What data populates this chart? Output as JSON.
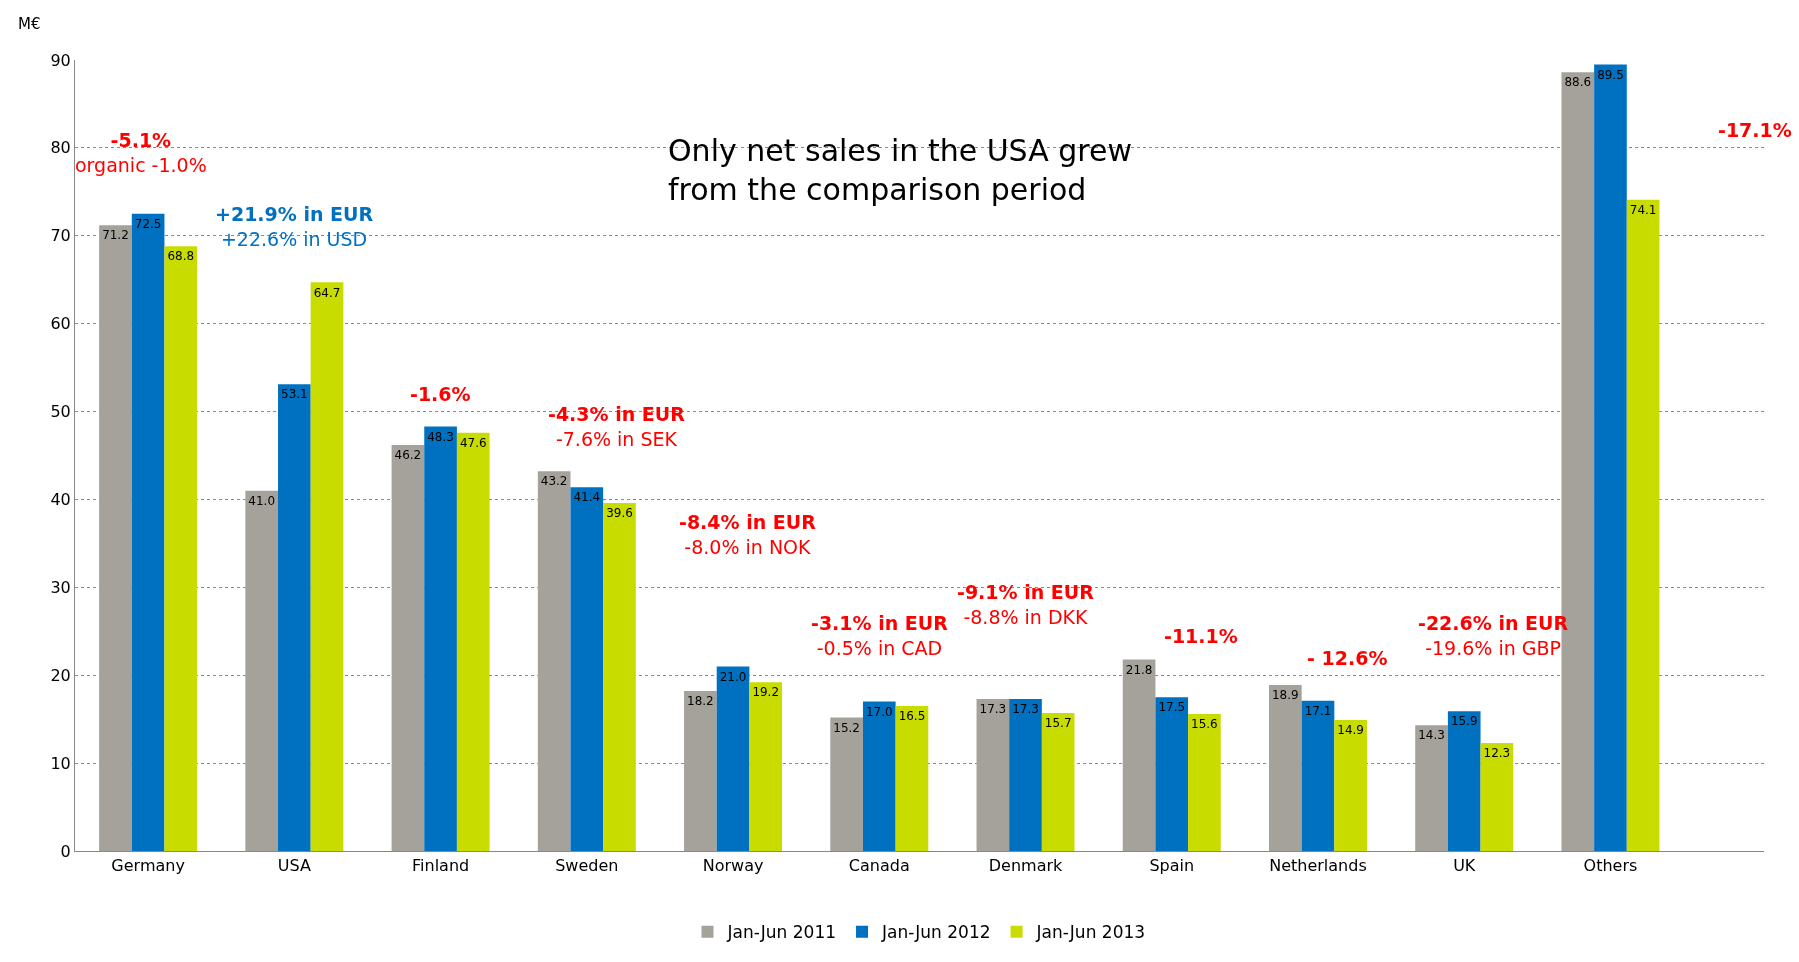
{
  "chart_data": {
    "type": "bar",
    "ylabel": "M€",
    "categories": [
      "Germany",
      "USA",
      "Finland",
      "Sweden",
      "Norway",
      "Canada",
      "Denmark",
      "Spain",
      "Netherlands",
      "UK",
      "Others"
    ],
    "series": [
      {
        "name": "Jan-Jun 2011",
        "color": "#a5a29b",
        "values": [
          71.2,
          41.0,
          46.2,
          43.2,
          18.2,
          15.2,
          17.3,
          21.8,
          18.9,
          14.3,
          88.6
        ],
        "value_labels": [
          "71.2",
          "41.0",
          "46.2",
          "43.2",
          "18.2",
          "15.2",
          "17.3",
          "21.8",
          "18.9",
          "14.3",
          "88.6"
        ]
      },
      {
        "name": "Jan-Jun 2012",
        "color": "#0070c0",
        "values": [
          72.5,
          53.1,
          48.3,
          41.4,
          21.0,
          17.0,
          17.3,
          17.5,
          17.1,
          15.9,
          89.5
        ],
        "value_labels": [
          "72.5",
          "53.1",
          "48.3",
          "41.4",
          "21.0",
          "17.0",
          "17.3",
          "17.5",
          "17.1",
          "15.9",
          "89.5"
        ]
      },
      {
        "name": "Jan-Jun 2013",
        "color": "#c8dc00",
        "values": [
          68.8,
          64.7,
          47.6,
          39.6,
          19.2,
          16.5,
          15.7,
          15.6,
          14.9,
          12.3,
          74.1
        ],
        "value_labels": [
          "68.8",
          "64.7",
          "47.6",
          "39.6",
          "19.2",
          "16.5",
          "15.7",
          "15.6",
          "14.9",
          "12.3",
          "74.1"
        ]
      }
    ],
    "ylim": [
      0,
      90
    ],
    "yticks": [
      0,
      10,
      20,
      30,
      40,
      50,
      60,
      70,
      80,
      90
    ],
    "grid": "y",
    "legend": "bottom",
    "annotations": [
      "Only net sales in the USA grew\nfrom the comparison period",
      "-5.1%\norganic -1.0%",
      "+21.9% in EUR\n+22.6% in USD",
      "-1.6%",
      "-4.3% in EUR\n-7.6% in SEK",
      "-8.4% in EUR\n-8.0% in NOK",
      "-3.1% in EUR\n-0.5% in CAD",
      "-9.1% in EUR\n-8.8% in DKK",
      "-11.1%",
      "- 12.6%",
      "-22.6% in EUR\n-19.6% in GBP",
      "-17.1%"
    ]
  }
}
